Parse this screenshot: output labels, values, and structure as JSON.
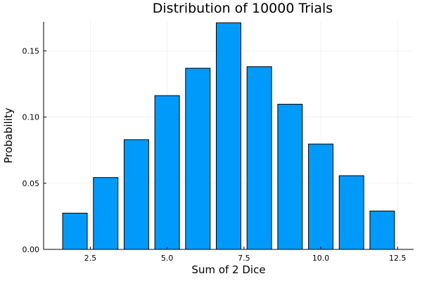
{
  "chart_data": {
    "type": "bar",
    "title": "Distribution of 10000 Trials",
    "xlabel": "Sum of 2 Dice",
    "ylabel": "Probability",
    "x": [
      2,
      3,
      4,
      5,
      6,
      7,
      8,
      9,
      10,
      11,
      12
    ],
    "values": [
      0.0274,
      0.0543,
      0.0829,
      0.1162,
      0.1369,
      0.1712,
      0.1381,
      0.1097,
      0.0796,
      0.0557,
      0.029
    ],
    "xlim": [
      0.98,
      13.02
    ],
    "ylim": [
      0,
      0.172
    ],
    "xticks": [
      2.5,
      5.0,
      7.5,
      10.0,
      12.5
    ],
    "xtick_labels": [
      "2.5",
      "5.0",
      "7.5",
      "10.0",
      "12.5"
    ],
    "yticks": [
      0,
      0.05,
      0.1,
      0.15
    ],
    "ytick_labels": [
      "0.00",
      "0.05",
      "0.10",
      "0.15"
    ],
    "grid": true,
    "legend": "none",
    "bar_color": "#009AFA"
  }
}
